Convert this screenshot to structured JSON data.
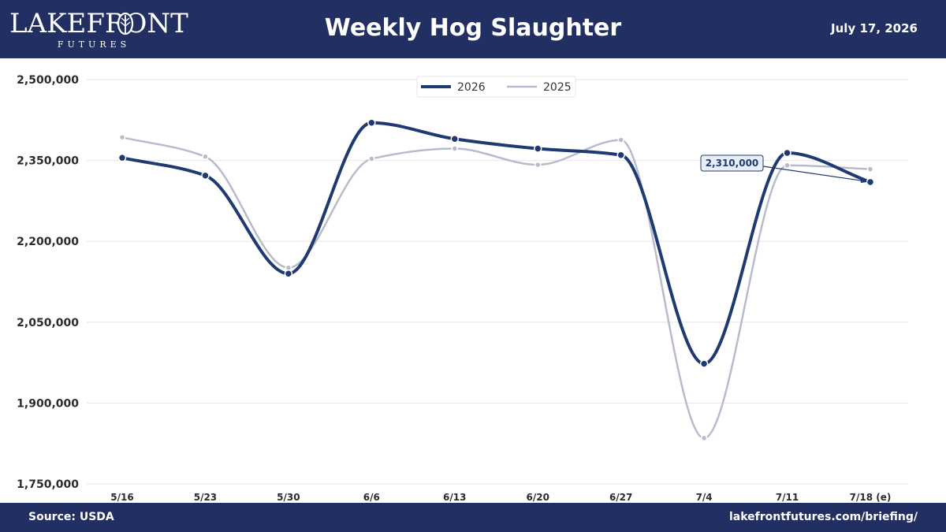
{
  "header": {
    "logo_main": "LAKEFRONT",
    "logo_sub": "FUTURES",
    "title": "Weekly Hog Slaughter",
    "date": "July 17, 2026"
  },
  "footer": {
    "source": "Source: USDA",
    "url": "lakefrontfutures.com/briefing/"
  },
  "chart_data": {
    "type": "line",
    "title": "Weekly Hog Slaughter",
    "xlabel": "",
    "ylabel": "",
    "categories": [
      "5/16",
      "5/23",
      "5/30",
      "6/6",
      "6/13",
      "6/20",
      "6/27",
      "7/4",
      "7/11",
      "7/18 (e)"
    ],
    "series": [
      {
        "name": "2026",
        "color": "#1e3a70",
        "values": [
          2355000,
          2322000,
          2140000,
          2420000,
          2390000,
          2372000,
          2360000,
          1973000,
          2364000,
          2310000
        ]
      },
      {
        "name": "2025",
        "color": "#b6bccb",
        "values": [
          2393000,
          2357000,
          2151000,
          2353000,
          2372000,
          2342000,
          2388000,
          1835000,
          2341000,
          2334000
        ]
      }
    ],
    "ylim": [
      1750000,
      2500000
    ],
    "yticks": [
      1750000,
      1900000,
      2050000,
      2200000,
      2350000,
      2500000
    ],
    "ytick_labels": [
      "1,750,000",
      "1,900,000",
      "2,050,000",
      "2,200,000",
      "2,350,000",
      "2,500,000"
    ],
    "grid": true,
    "legend_position": "top-center",
    "annotation": {
      "label": "2,310,000",
      "category": "7/18 (e)",
      "series": "2026",
      "value": 2310000
    }
  }
}
